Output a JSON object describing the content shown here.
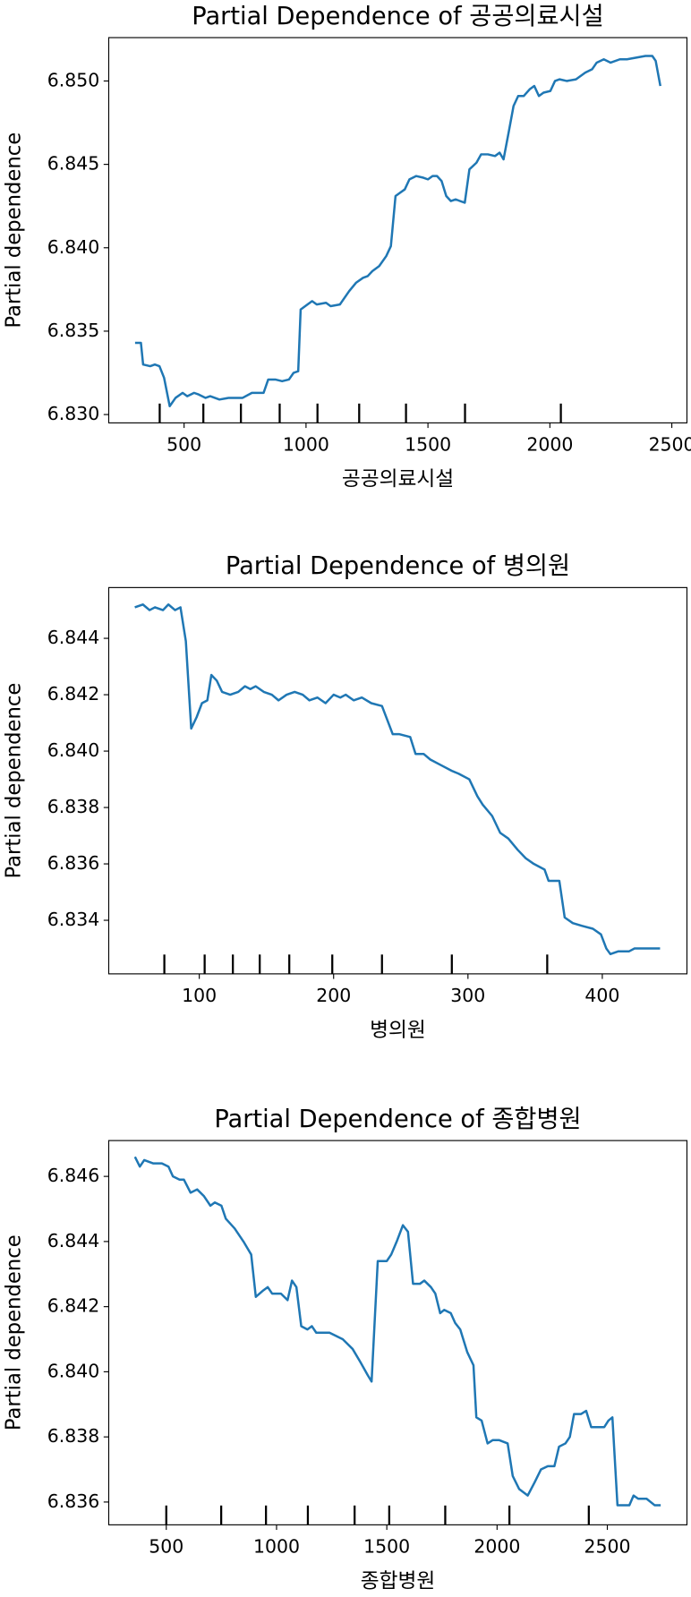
{
  "chart_data": [
    {
      "type": "line",
      "title": "Partial Dependence of 공공의료시설",
      "xlabel": "공공의료시설",
      "ylabel": "Partial dependence",
      "color": "#1f77b4",
      "x": [
        299,
        323,
        332,
        361,
        380,
        399,
        418,
        441,
        465,
        494,
        513,
        541,
        560,
        588,
        607,
        645,
        683,
        702,
        740,
        778,
        826,
        845,
        874,
        902,
        930,
        949,
        968,
        978,
        1006,
        1025,
        1044,
        1082,
        1101,
        1139,
        1177,
        1205,
        1234,
        1253,
        1272,
        1300,
        1329,
        1348,
        1367,
        1386,
        1405,
        1424,
        1452,
        1481,
        1500,
        1519,
        1537,
        1556,
        1575,
        1594,
        1614,
        1632,
        1651,
        1670,
        1699,
        1718,
        1746,
        1775,
        1794,
        1810,
        1832,
        1851,
        1870,
        1893,
        1917,
        1936,
        1955,
        1974,
        2002,
        2021,
        2040,
        2069,
        2107,
        2145,
        2173,
        2192,
        2221,
        2249,
        2287,
        2316,
        2354,
        2392,
        2420,
        2434,
        2453
      ],
      "values": [
        6.8343,
        6.8343,
        6.833,
        6.8329,
        6.833,
        6.8329,
        6.8322,
        6.8305,
        6.831,
        6.8313,
        6.8311,
        6.8313,
        6.8312,
        6.831,
        6.8311,
        6.8309,
        6.831,
        6.831,
        6.831,
        6.8313,
        6.8313,
        6.8321,
        6.8321,
        6.832,
        6.8321,
        6.8325,
        6.8326,
        6.8363,
        6.8366,
        6.8368,
        6.8366,
        6.8367,
        6.8365,
        6.8366,
        6.8374,
        6.8379,
        6.8382,
        6.8383,
        6.8386,
        6.8389,
        6.8395,
        6.8401,
        6.8431,
        6.8433,
        6.8435,
        6.8441,
        6.8443,
        6.8442,
        6.8441,
        6.8443,
        6.8443,
        6.844,
        6.8431,
        6.8428,
        6.8429,
        6.8428,
        6.8427,
        6.8447,
        6.8451,
        6.8456,
        6.8456,
        6.8455,
        6.8457,
        6.8453,
        6.847,
        6.8485,
        6.8491,
        6.8491,
        6.8495,
        6.8497,
        6.8491,
        6.8493,
        6.8494,
        6.85,
        6.8501,
        6.85,
        6.8501,
        6.8505,
        6.8507,
        6.8511,
        6.8513,
        6.8511,
        6.8513,
        6.8513,
        6.8514,
        6.8515,
        6.8515,
        6.8512,
        6.8497
      ],
      "deciles": [
        400,
        579,
        733,
        892,
        1047,
        1218,
        1410,
        1652,
        2045
      ],
      "xlim": [
        191,
        2562
      ],
      "ylim": [
        6.8295,
        6.8526
      ],
      "xticks": [
        500,
        1000,
        1500,
        2000,
        2500
      ],
      "yticks": [
        {
          "value": 6.83,
          "label": "6.830"
        },
        6.835,
        {
          "value": 6.84,
          "label": "6.840"
        },
        6.845,
        {
          "value": 6.85,
          "label": "6.850"
        }
      ]
    },
    {
      "type": "line",
      "title": "Partial Dependence of 병의원",
      "xlabel": "병의원",
      "ylabel": "Partial dependence",
      "color": "#1f77b4",
      "x": [
        52,
        58,
        63,
        67,
        73,
        77,
        82,
        86,
        90,
        94,
        98,
        102,
        106,
        109,
        113,
        117,
        123,
        129,
        134,
        138,
        142,
        148,
        154,
        159,
        165,
        171,
        177,
        182,
        188,
        194,
        200,
        205,
        209,
        215,
        221,
        228,
        236,
        240,
        244,
        249,
        257,
        261,
        267,
        272,
        280,
        288,
        293,
        301,
        307,
        311,
        318,
        324,
        330,
        337,
        343,
        349,
        357,
        360,
        368,
        372,
        378,
        385,
        393,
        399,
        403,
        406,
        412,
        420,
        424,
        443
      ],
      "values": [
        6.8451,
        6.8452,
        6.845,
        6.8451,
        6.845,
        6.8452,
        6.845,
        6.8451,
        6.8439,
        6.8408,
        6.8412,
        6.8417,
        6.8418,
        6.8427,
        6.8425,
        6.8421,
        6.842,
        6.8421,
        6.8423,
        6.8422,
        6.8423,
        6.8421,
        6.842,
        6.8418,
        6.842,
        6.8421,
        6.842,
        6.8418,
        6.8419,
        6.8417,
        6.842,
        6.8419,
        6.842,
        6.8418,
        6.8419,
        6.8417,
        6.8416,
        6.8411,
        6.8406,
        6.8406,
        6.8405,
        6.8399,
        6.8399,
        6.8397,
        6.8395,
        6.8393,
        6.8392,
        6.839,
        6.8384,
        6.8381,
        6.8377,
        6.8371,
        6.8369,
        6.8365,
        6.8362,
        6.836,
        6.8358,
        6.8354,
        6.8354,
        6.8341,
        6.8339,
        6.8338,
        6.8337,
        6.8335,
        6.833,
        6.8328,
        6.8329,
        6.8329,
        6.833,
        6.833
      ],
      "deciles": [
        74,
        104,
        125,
        145,
        167,
        199,
        236,
        288,
        359
      ],
      "xlim": [
        32.6,
        463
      ],
      "ylim": [
        6.8321,
        6.8458
      ],
      "xticks": [
        100,
        200,
        300,
        400
      ],
      "yticks": [
        6.834,
        6.836,
        6.838,
        {
          "value": 6.84,
          "label": "6.840"
        },
        6.842,
        6.844
      ]
    },
    {
      "type": "line",
      "title": "Partial Dependence of 종합병원",
      "xlabel": "종합병원",
      "ylabel": "Partial dependence",
      "color": "#1f77b4",
      "x": [
        358,
        380,
        400,
        440,
        480,
        510,
        530,
        560,
        580,
        610,
        640,
        670,
        700,
        720,
        750,
        770,
        810,
        850,
        885,
        906,
        940,
        960,
        980,
        1020,
        1050,
        1070,
        1090,
        1112,
        1140,
        1160,
        1180,
        1210,
        1240,
        1270,
        1300,
        1345,
        1380,
        1413,
        1431,
        1459,
        1480,
        1500,
        1520,
        1545,
        1573,
        1596,
        1619,
        1650,
        1670,
        1700,
        1720,
        1742,
        1760,
        1790,
        1810,
        1833,
        1865,
        1893,
        1906,
        1930,
        1957,
        1980,
        2010,
        2048,
        2071,
        2100,
        2139,
        2170,
        2199,
        2230,
        2260,
        2281,
        2310,
        2330,
        2349,
        2380,
        2404,
        2427,
        2460,
        2486,
        2505,
        2523,
        2546,
        2580,
        2600,
        2619,
        2640,
        2678,
        2715,
        2742
      ],
      "values": [
        6.8466,
        6.8463,
        6.8465,
        6.8464,
        6.8464,
        6.8463,
        6.846,
        6.8459,
        6.8459,
        6.8455,
        6.8456,
        6.8454,
        6.8451,
        6.8452,
        6.8451,
        6.8447,
        6.8444,
        6.844,
        6.8436,
        6.8423,
        6.8425,
        6.8426,
        6.8424,
        6.8424,
        6.8422,
        6.8428,
        6.8426,
        6.8414,
        6.8413,
        6.8414,
        6.8412,
        6.8412,
        6.8412,
        6.8411,
        6.841,
        6.8407,
        6.8403,
        6.8399,
        6.8397,
        6.8434,
        6.8434,
        6.8434,
        6.8436,
        6.844,
        6.8445,
        6.8443,
        6.8427,
        6.8427,
        6.8428,
        6.8426,
        6.8424,
        6.8418,
        6.8419,
        6.8418,
        6.8415,
        6.8413,
        6.8406,
        6.8402,
        6.8386,
        6.8385,
        6.8378,
        6.8379,
        6.8379,
        6.8378,
        6.8368,
        6.8364,
        6.8362,
        6.8366,
        6.837,
        6.8371,
        6.8371,
        6.8377,
        6.8378,
        6.838,
        6.8387,
        6.8387,
        6.8388,
        6.8383,
        6.8383,
        6.8383,
        6.8385,
        6.8386,
        6.8359,
        6.8359,
        6.8359,
        6.8362,
        6.8361,
        6.8361,
        6.8359,
        6.8359
      ],
      "deciles": [
        500,
        749,
        952,
        1142,
        1354,
        1511,
        1765,
        2056,
        2416
      ],
      "xlim": [
        239,
        2861
      ],
      "ylim": [
        6.8353,
        6.8471
      ],
      "xticks": [
        500,
        1000,
        1500,
        2000,
        2500
      ],
      "yticks": [
        6.836,
        6.838,
        {
          "value": 6.84,
          "label": "6.840"
        },
        6.842,
        6.844,
        6.846
      ]
    }
  ]
}
